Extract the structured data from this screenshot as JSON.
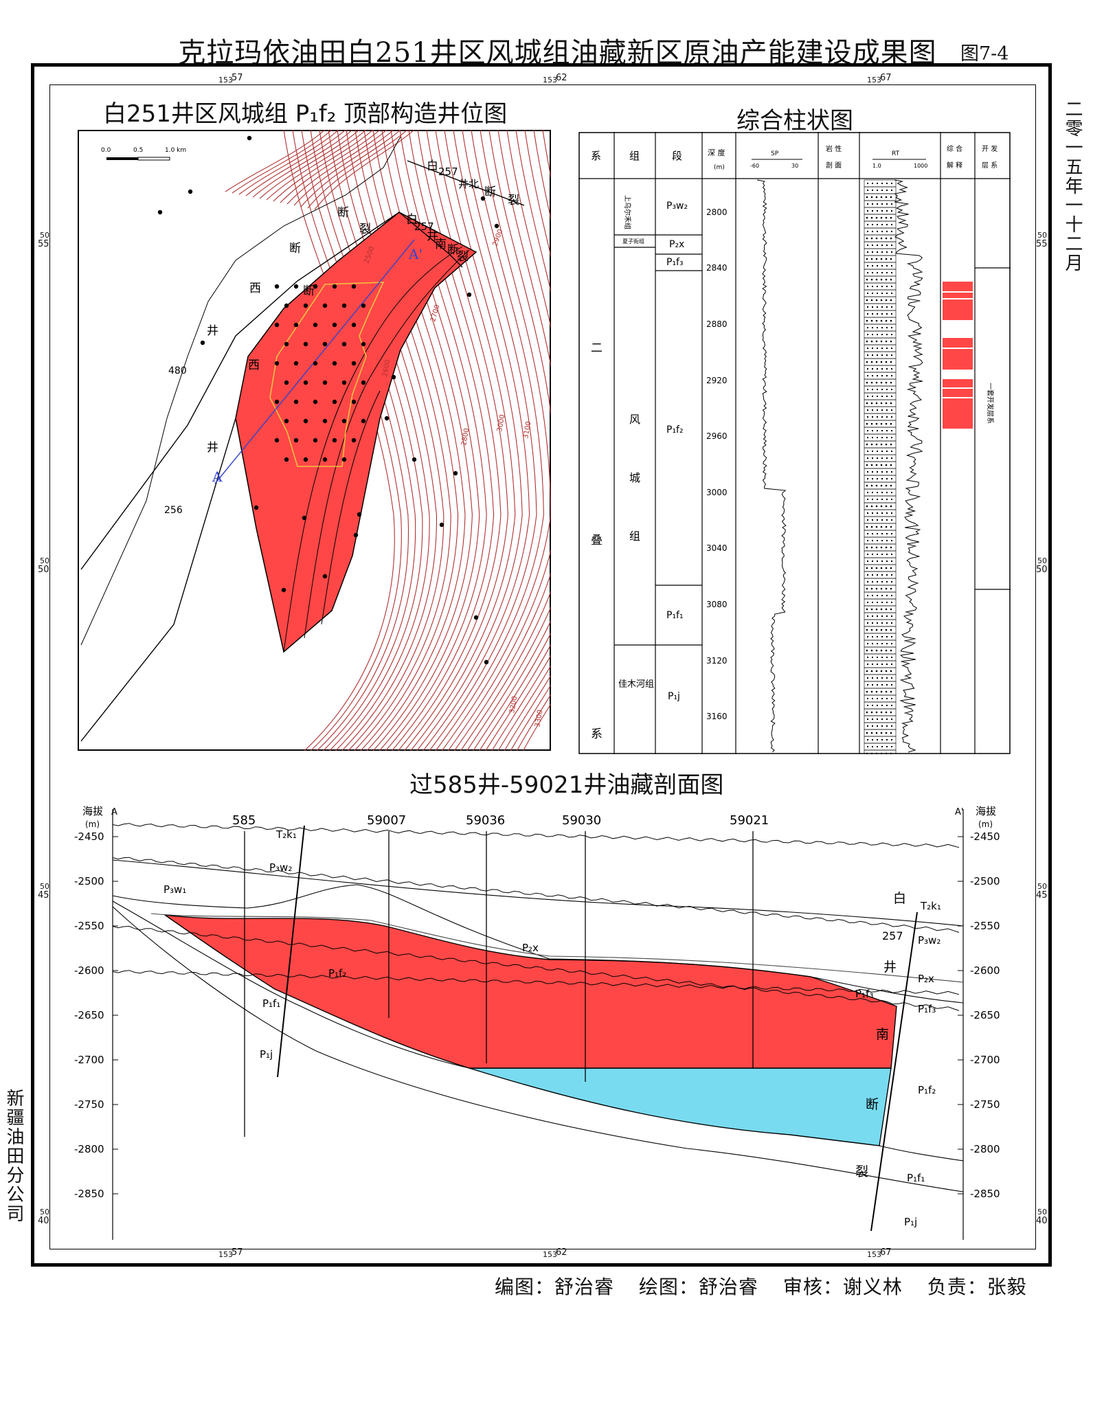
{
  "title": "克拉玛依油田白251井区风城组油藏新区原油产能建设成果图",
  "figure_no": "图7-4",
  "date_text": "二零一五年一十二月",
  "company_text": "新疆油田分公司",
  "credits": {
    "compiled": "编图：舒治睿",
    "drawn": "绘图：舒治睿",
    "reviewed": "审核：谢义林",
    "responsible": "负责：张毅"
  },
  "grid": {
    "top": [
      "153",
      "57",
      "153",
      "62",
      "153",
      "67"
    ],
    "left": [
      "50",
      "55",
      "50",
      "50",
      "50",
      "45",
      "50",
      "40"
    ]
  },
  "map": {
    "title": "白251井区风城组 P₁f₂ 顶部构造井位图",
    "scale": [
      "0.0",
      "0.5",
      "1.0 km"
    ],
    "labels": {
      "fault_north": [
        "白",
        "257",
        "井北",
        "断",
        "裂"
      ],
      "fault_south": [
        "白",
        "257",
        "井",
        "南",
        "断",
        "裂"
      ],
      "fault_west": [
        "断",
        "西",
        "断",
        "井",
        "西",
        "井",
        "480",
        "256"
      ],
      "section_a": "A",
      "section_a2": "A'"
    },
    "contours": [
      "2500",
      "2600",
      "2700",
      "2800",
      "2900",
      "3000",
      "3100",
      "3200",
      "3300"
    ]
  },
  "column": {
    "title": "综合柱状图",
    "headers": [
      "系",
      "组",
      "段",
      "深 度",
      "(m)",
      "SP",
      "-60",
      "30",
      "岩 性",
      "剖 面",
      "RT",
      "1.0",
      "1000",
      "综 合",
      "解 释",
      "开 发",
      "层 系"
    ],
    "system": [
      "二",
      "叠",
      "系"
    ],
    "formations": [
      "上乌尔禾组",
      "夏子街组",
      "风",
      "城",
      "组",
      "佳木河组"
    ],
    "members": [
      "P₃w₂",
      "P₂x",
      "P₁f₃",
      "P₁f₂",
      "P₁f₁",
      "P₁j"
    ],
    "depths": [
      "2800",
      "2840",
      "2880",
      "2920",
      "2960",
      "3000",
      "3040",
      "3080",
      "3120",
      "3160"
    ],
    "dev_layer": "一套开发层系"
  },
  "section": {
    "title": "过585井-59021井油藏剖面图",
    "axis_title": [
      "海拔",
      "(m)"
    ],
    "end_a": "A",
    "end_a2": "A'",
    "wells": [
      "585",
      "59007",
      "59036",
      "59030",
      "59021"
    ],
    "elevations": [
      "-2450",
      "-2500",
      "-2550",
      "-2600",
      "-2650",
      "-2700",
      "-2750",
      "-2800",
      "-2850"
    ],
    "layers_left": [
      "T₂k₁",
      "P₃w₂",
      "P₃w₁",
      "P₁f₂",
      "P₁f₁",
      "P₁j",
      "P₂x",
      "P₁f₃"
    ],
    "layers_right": [
      "T₂k₁",
      "P₃w₂",
      "P₂x",
      "P₁f₃",
      "P₁f₂",
      "P₁f₁",
      "P₁j"
    ],
    "fault_chars": [
      "白",
      "257",
      "井",
      "南",
      "断",
      "裂"
    ]
  },
  "colors": {
    "oil": "#ff4747",
    "water": "#79dbf0",
    "contour": "#b03030",
    "fault": "#000000"
  }
}
